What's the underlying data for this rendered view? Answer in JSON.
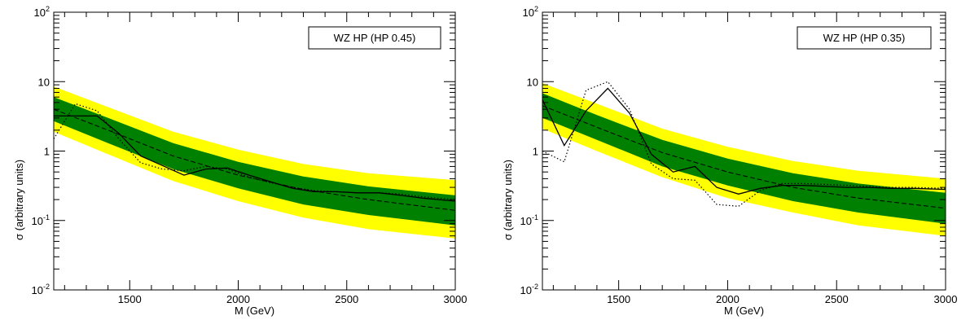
{
  "colors": {
    "band_2sigma": "#ffff00",
    "band_1sigma": "#008000",
    "line": "#000000",
    "background": "#ffffff"
  },
  "chart_data": [
    {
      "type": "line",
      "label": "WZ HP (HP 0.45)",
      "xlabel": "M (GeV)",
      "ylabel": "σ (arbitrary units)",
      "xlim": [
        1150,
        3000
      ],
      "ylim": [
        0.01,
        100
      ],
      "yscale": "log",
      "grid": false,
      "x_ticks": [
        1500,
        2000,
        2500,
        3000
      ],
      "y_ticks": [
        {
          "value": 0.01,
          "base": "10",
          "exp": "-2"
        },
        {
          "value": 0.1,
          "base": "10",
          "exp": "-1"
        },
        {
          "value": 1,
          "base": "1",
          "exp": ""
        },
        {
          "value": 10,
          "base": "10",
          "exp": ""
        },
        {
          "value": 100,
          "base": "10",
          "exp": "2"
        }
      ],
      "series": [
        {
          "role": "expected",
          "style": "dashed",
          "x": [
            1150,
            1400,
            1700,
            2000,
            2300,
            2600,
            3000
          ],
          "values": [
            4.0,
            2.0,
            0.85,
            0.45,
            0.28,
            0.2,
            0.14
          ]
        },
        {
          "role": "observed",
          "style": "solid",
          "x": [
            1150,
            1250,
            1350,
            1450,
            1550,
            1650,
            1750,
            1850,
            1950,
            2050,
            2150,
            2250,
            2350,
            2450,
            2550,
            2650,
            2750,
            2850,
            3000
          ],
          "values": [
            3.2,
            3.2,
            3.2,
            1.8,
            0.85,
            0.62,
            0.45,
            0.55,
            0.57,
            0.45,
            0.36,
            0.29,
            0.26,
            0.26,
            0.25,
            0.25,
            0.23,
            0.21,
            0.19
          ]
        },
        {
          "role": "observed-alt",
          "style": "dotted",
          "x": [
            1150,
            1250,
            1350,
            1450,
            1550,
            1650,
            1750,
            1850,
            1950,
            2050,
            2150,
            2250,
            2350,
            2450,
            2550,
            2650,
            2750,
            2850,
            3000
          ],
          "values": [
            1.5,
            4.8,
            3.8,
            1.5,
            0.68,
            0.55,
            0.52,
            0.6,
            0.55,
            0.42,
            0.35,
            0.3,
            0.27,
            0.26,
            0.25,
            0.25,
            0.24,
            0.22,
            0.2
          ]
        },
        {
          "role": "band-1sigma",
          "style": "band",
          "x": [
            1150,
            1400,
            1700,
            2000,
            2300,
            2600,
            3000
          ],
          "lower": [
            2.7,
            1.3,
            0.55,
            0.29,
            0.17,
            0.12,
            0.085
          ],
          "upper": [
            6.0,
            3.0,
            1.3,
            0.7,
            0.43,
            0.31,
            0.23
          ]
        },
        {
          "role": "band-2sigma",
          "style": "band",
          "x": [
            1150,
            1400,
            1700,
            2000,
            2300,
            2600,
            3000
          ],
          "lower": [
            1.9,
            0.9,
            0.37,
            0.19,
            0.11,
            0.075,
            0.055
          ],
          "upper": [
            8.5,
            4.3,
            1.9,
            1.05,
            0.65,
            0.48,
            0.38
          ]
        }
      ]
    },
    {
      "type": "line",
      "label": "WZ HP (HP 0.35)",
      "xlabel": "M (GeV)",
      "ylabel": "σ (arbitrary units)",
      "xlim": [
        1150,
        3000
      ],
      "ylim": [
        0.01,
        100
      ],
      "yscale": "log",
      "grid": false,
      "x_ticks": [
        1500,
        2000,
        2500,
        3000
      ],
      "y_ticks": [
        {
          "value": 0.01,
          "base": "10",
          "exp": "-2"
        },
        {
          "value": 0.1,
          "base": "10",
          "exp": "-1"
        },
        {
          "value": 1,
          "base": "1",
          "exp": ""
        },
        {
          "value": 10,
          "base": "10",
          "exp": ""
        },
        {
          "value": 100,
          "base": "10",
          "exp": "2"
        }
      ],
      "series": [
        {
          "role": "expected",
          "style": "dashed",
          "x": [
            1150,
            1400,
            1700,
            2000,
            2300,
            2600,
            3000
          ],
          "values": [
            4.5,
            2.2,
            0.95,
            0.5,
            0.3,
            0.21,
            0.15
          ]
        },
        {
          "role": "observed",
          "style": "solid",
          "x": [
            1150,
            1250,
            1350,
            1450,
            1550,
            1650,
            1750,
            1850,
            1950,
            2050,
            2150,
            2250,
            2350,
            2450,
            2550,
            2650,
            2750,
            2850,
            3000
          ],
          "values": [
            5.5,
            1.2,
            3.8,
            8.0,
            3.5,
            0.9,
            0.5,
            0.6,
            0.3,
            0.24,
            0.29,
            0.32,
            0.32,
            0.31,
            0.3,
            0.3,
            0.29,
            0.29,
            0.28
          ]
        },
        {
          "role": "observed-alt",
          "style": "dotted",
          "x": [
            1150,
            1250,
            1350,
            1450,
            1550,
            1650,
            1750,
            1850,
            1950,
            2050,
            2150,
            2250,
            2350,
            2450,
            2550,
            2650,
            2750,
            2850,
            3000
          ],
          "values": [
            1.0,
            0.7,
            7.5,
            10.0,
            4.0,
            0.65,
            0.4,
            0.38,
            0.17,
            0.16,
            0.27,
            0.34,
            0.34,
            0.33,
            0.32,
            0.31,
            0.3,
            0.3,
            0.29
          ]
        },
        {
          "role": "band-1sigma",
          "style": "band",
          "x": [
            1150,
            1400,
            1700,
            2000,
            2300,
            2600,
            3000
          ],
          "lower": [
            3.0,
            1.45,
            0.6,
            0.32,
            0.19,
            0.13,
            0.09
          ],
          "upper": [
            6.8,
            3.3,
            1.45,
            0.78,
            0.48,
            0.34,
            0.25
          ]
        },
        {
          "role": "band-2sigma",
          "style": "band",
          "x": [
            1150,
            1400,
            1700,
            2000,
            2300,
            2600,
            3000
          ],
          "lower": [
            2.1,
            1.0,
            0.42,
            0.21,
            0.13,
            0.085,
            0.06
          ],
          "upper": [
            9.5,
            4.8,
            2.1,
            1.15,
            0.72,
            0.52,
            0.4
          ]
        }
      ]
    }
  ]
}
